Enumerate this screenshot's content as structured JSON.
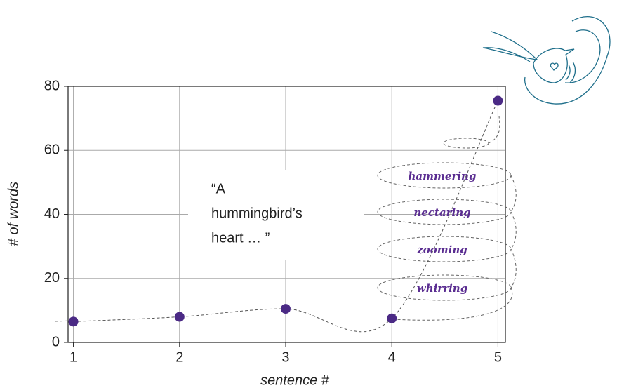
{
  "chart_data": {
    "type": "line",
    "x": [
      1,
      2,
      3,
      4,
      5
    ],
    "values": [
      6.5,
      8,
      10.5,
      7.5,
      75.5
    ],
    "color": "#4b2a85",
    "xlim": [
      0.95,
      5.07
    ],
    "xticks": [
      1,
      2,
      3,
      4,
      5
    ],
    "ylim": [
      0,
      80
    ],
    "yticks": [
      0,
      20,
      40,
      60,
      80
    ],
    "grid": true,
    "xlabel": "sentence #",
    "ylabel": "# of words",
    "annotation": [
      "“A",
      "hummingbird’s",
      "heart … ”"
    ],
    "spiral_words": [
      "hammering",
      "nectaring",
      "zooming",
      "whirring"
    ]
  }
}
